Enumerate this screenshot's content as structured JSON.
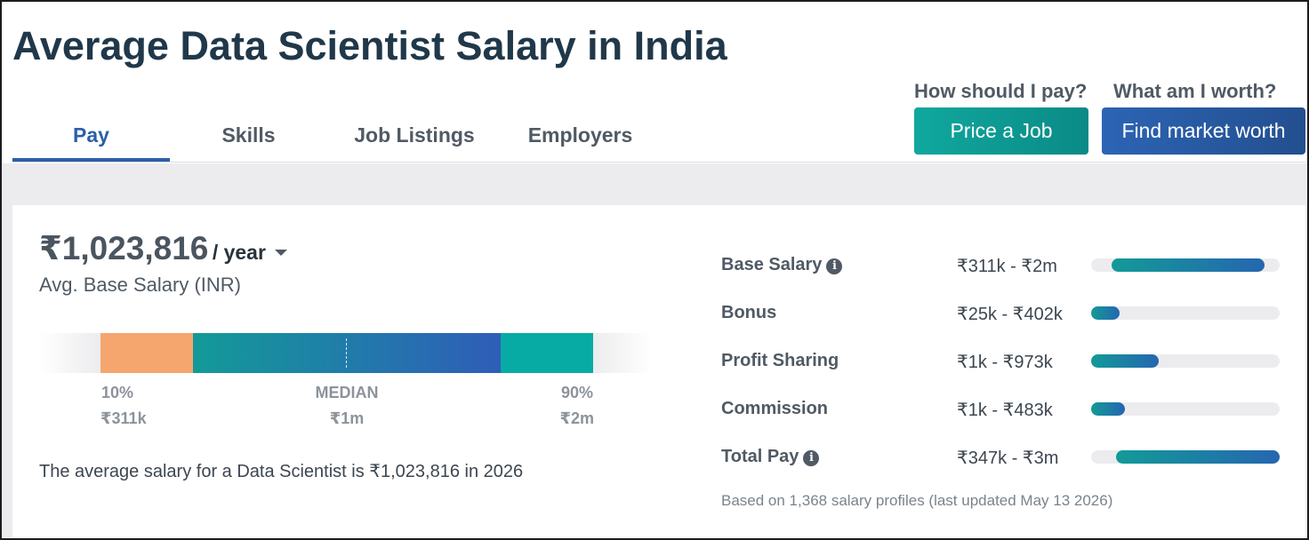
{
  "header": {
    "title": "Average Data Scientist Salary in India"
  },
  "tabs": [
    {
      "label": "Pay",
      "active": true
    },
    {
      "label": "Skills",
      "active": false
    },
    {
      "label": "Job Listings",
      "active": false
    },
    {
      "label": "Employers",
      "active": false
    }
  ],
  "cta": {
    "price_question": "How should I pay?",
    "price_button": "Price a Job",
    "worth_question": "What am I worth?",
    "worth_button": "Find market worth"
  },
  "salary": {
    "amount": "₹1,023,816",
    "period": "/ year",
    "label": "Avg. Base Salary (INR)",
    "percentiles": [
      {
        "name": "10%",
        "value": "₹311k"
      },
      {
        "name": "MEDIAN",
        "value": "₹1m"
      },
      {
        "name": "90%",
        "value": "₹2m"
      }
    ],
    "summary": "The average salary for a Data Scientist is ₹1,023,816 in 2026"
  },
  "breakdown": [
    {
      "label": "Base Salary",
      "info": true,
      "range": "₹311k - ₹2m",
      "bar_start": 0.11,
      "bar_end": 0.92
    },
    {
      "label": "Bonus",
      "info": false,
      "range": "₹25k - ₹402k",
      "bar_start": 0.0,
      "bar_end": 0.15
    },
    {
      "label": "Profit Sharing",
      "info": false,
      "range": "₹1k - ₹973k",
      "bar_start": 0.0,
      "bar_end": 0.36
    },
    {
      "label": "Commission",
      "info": false,
      "range": "₹1k - ₹483k",
      "bar_start": 0.0,
      "bar_end": 0.18
    },
    {
      "label": "Total Pay",
      "info": true,
      "range": "₹347k - ₹3m",
      "bar_start": 0.13,
      "bar_end": 1.0
    }
  ],
  "footnote": "Based on 1,368 salary profiles (last updated May 13 2026)",
  "colors": {
    "accent": "#2c5fa8",
    "teal": "#10a89e",
    "low_percentile": "#f5a66f",
    "title": "#20384a"
  },
  "icons": {
    "info": "info-icon",
    "caret": "caret-down-icon"
  }
}
